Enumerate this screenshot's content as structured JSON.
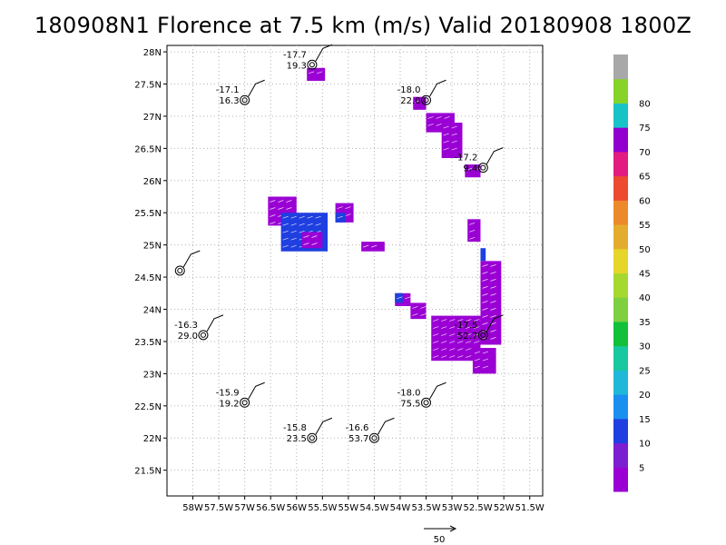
{
  "title": "180908N1 Florence at 7.5 km (m/s) Valid 20180908 1800Z",
  "chart_data": {
    "type": "scatter",
    "title": "180908N1 Florence at 7.5 km (m/s) Valid 20180908 1800Z",
    "xlim": [
      -58.5,
      -51.25
    ],
    "ylim": [
      21.1,
      28.1
    ],
    "grid": true,
    "x_ticks": [
      -58,
      -57.5,
      -57,
      -56.5,
      -56,
      -55.5,
      -55,
      -54.5,
      -54,
      -53.5,
      -53,
      -52.5,
      -52,
      -51.5
    ],
    "x_tick_labels": [
      "58W",
      "57.5W",
      "57W",
      "56.5W",
      "56W",
      "55.5W",
      "55W",
      "54.5W",
      "54W",
      "53.5W",
      "53W",
      "52.5W",
      "52W",
      "51.5W"
    ],
    "y_ticks": [
      21.5,
      22,
      22.5,
      23,
      23.5,
      24,
      24.5,
      25,
      25.5,
      26,
      26.5,
      27,
      27.5,
      28
    ],
    "y_tick_labels": [
      "21.5N",
      "22N",
      "22.5N",
      "23N",
      "23.5N",
      "24N",
      "24.5N",
      "25N",
      "25.5N",
      "26N",
      "26.5N",
      "27N",
      "27.5N",
      "28N"
    ],
    "stations": [
      {
        "lon": -55.7,
        "lat": 27.8,
        "temp": "-17.7",
        "speed": "19.3"
      },
      {
        "lon": -57.0,
        "lat": 27.25,
        "temp": "-17.1",
        "speed": "16.3"
      },
      {
        "lon": -53.5,
        "lat": 27.25,
        "temp": "-18.0",
        "speed": "22.0"
      },
      {
        "lon": -52.4,
        "lat": 26.2,
        "temp": "-17.2",
        "speed": "9.4"
      },
      {
        "lon": -58.25,
        "lat": 24.6,
        "temp": "",
        "speed": ""
      },
      {
        "lon": -57.8,
        "lat": 23.6,
        "temp": "-16.3",
        "speed": "29.0"
      },
      {
        "lon": -52.4,
        "lat": 23.6,
        "temp": "-17.5",
        "speed": "52.7"
      },
      {
        "lon": -57.0,
        "lat": 22.55,
        "temp": "-15.9",
        "speed": "19.2"
      },
      {
        "lon": -53.5,
        "lat": 22.55,
        "temp": "-18.0",
        "speed": "75.5"
      },
      {
        "lon": -55.7,
        "lat": 22.0,
        "temp": "-15.8",
        "speed": "23.5"
      },
      {
        "lon": -54.5,
        "lat": 22.0,
        "temp": "-16.6",
        "speed": "53.7"
      }
    ],
    "wind_regions": [
      {
        "lon": [
          -55.8,
          -55.45
        ],
        "lat": [
          27.55,
          27.75
        ],
        "speed": 7
      },
      {
        "lon": [
          -53.75,
          -53.5
        ],
        "lat": [
          27.1,
          27.3
        ],
        "speed": 7
      },
      {
        "lon": [
          -53.5,
          -52.95
        ],
        "lat": [
          26.75,
          27.05
        ],
        "speed": 7
      },
      {
        "lon": [
          -53.2,
          -52.8
        ],
        "lat": [
          26.35,
          26.9
        ],
        "speed": 7
      },
      {
        "lon": [
          -52.75,
          -52.45
        ],
        "lat": [
          26.05,
          26.25
        ],
        "speed": 7
      },
      {
        "lon": [
          -56.55,
          -56.0
        ],
        "lat": [
          25.3,
          25.75
        ],
        "speed": 7
      },
      {
        "lon": [
          -56.3,
          -55.4
        ],
        "lat": [
          24.9,
          25.5
        ],
        "speed": 15
      },
      {
        "lon": [
          -55.9,
          -55.5
        ],
        "lat": [
          24.95,
          25.2
        ],
        "speed": 7
      },
      {
        "lon": [
          -55.25,
          -54.9
        ],
        "lat": [
          25.35,
          25.65
        ],
        "speed": 7
      },
      {
        "lon": [
          -55.25,
          -55.05
        ],
        "lat": [
          25.35,
          25.5
        ],
        "speed": 15
      },
      {
        "lon": [
          -54.75,
          -54.3
        ],
        "lat": [
          24.9,
          25.05
        ],
        "speed": 7
      },
      {
        "lon": [
          -52.7,
          -52.45
        ],
        "lat": [
          25.05,
          25.4
        ],
        "speed": 7
      },
      {
        "lon": [
          -52.45,
          -52.35
        ],
        "lat": [
          24.75,
          24.95
        ],
        "speed": 15
      },
      {
        "lon": [
          -52.45,
          -52.05
        ],
        "lat": [
          23.45,
          24.75
        ],
        "speed": 7
      },
      {
        "lon": [
          -54.1,
          -53.8
        ],
        "lat": [
          24.05,
          24.25
        ],
        "speed": 7
      },
      {
        "lon": [
          -54.1,
          -53.95
        ],
        "lat": [
          24.1,
          24.25
        ],
        "speed": 15
      },
      {
        "lon": [
          -53.8,
          -53.5
        ],
        "lat": [
          23.85,
          24.1
        ],
        "speed": 7
      },
      {
        "lon": [
          -53.4,
          -52.45
        ],
        "lat": [
          23.2,
          23.9
        ],
        "speed": 7
      },
      {
        "lon": [
          -52.6,
          -52.15
        ],
        "lat": [
          23.0,
          23.4
        ],
        "speed": 7
      }
    ],
    "colorbar": {
      "labels": [
        "5",
        "10",
        "15",
        "20",
        "25",
        "30",
        "35",
        "40",
        "45",
        "50",
        "55",
        "60",
        "65",
        "70",
        "75",
        "80"
      ],
      "colors": [
        "#9a00d4",
        "#7b1fd0",
        "#1f3fe0",
        "#1a8ff0",
        "#1fb8d8",
        "#17c8a0",
        "#13c03a",
        "#7ed040",
        "#a6d930",
        "#e6d52a",
        "#e3ac2e",
        "#ec8a2b",
        "#ec4b30",
        "#e21c80",
        "#9200d0",
        "#18c3c8",
        "#86d42a",
        "#a8a8a8"
      ]
    },
    "reference_vector": {
      "label": "50"
    }
  }
}
